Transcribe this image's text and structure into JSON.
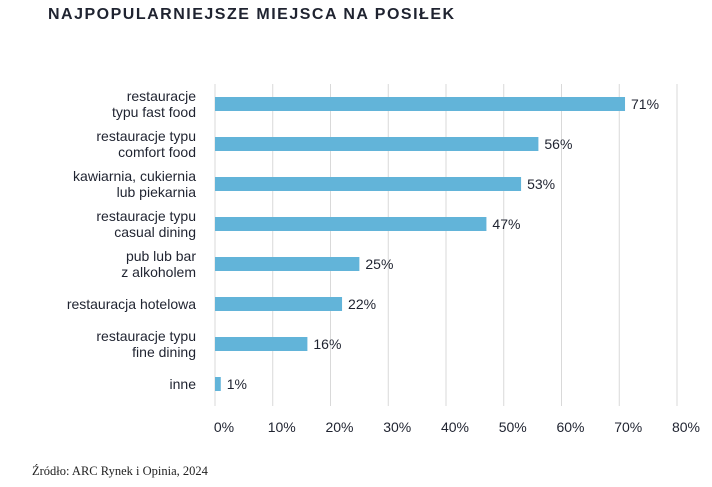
{
  "chart_data": {
    "type": "bar",
    "orientation": "horizontal",
    "title": "NAJPOPULARNIEJSZE MIEJSCA NA POSIŁEK",
    "categories": [
      [
        "restauracje",
        "typu fast food"
      ],
      [
        "restauracje typu",
        "comfort food"
      ],
      [
        "kawiarnia, cukiernia",
        "lub piekarnia"
      ],
      [
        "restauracje typu",
        "casual dining"
      ],
      [
        "pub lub bar",
        "z alkoholem"
      ],
      [
        "restauracja hotelowa"
      ],
      [
        "restauracje typu",
        "fine dining"
      ],
      [
        "inne"
      ]
    ],
    "values": [
      71,
      56,
      53,
      47,
      25,
      22,
      16,
      1
    ],
    "data_labels": [
      "71%",
      "56%",
      "53%",
      "47%",
      "25%",
      "22%",
      "16%",
      "1%"
    ],
    "xlim": [
      0,
      80
    ],
    "xticks": [
      "0%",
      "10%",
      "20%",
      "30%",
      "40%",
      "50%",
      "60%",
      "70%",
      "80%"
    ],
    "xlabel": "",
    "ylabel": "",
    "grid": "vertical",
    "bar_color": "#62b4d9",
    "grid_color": "#d9d9d9",
    "text_color": "#1f2330"
  },
  "source": "Źródło: ARC Rynek i Opinia, 2024"
}
